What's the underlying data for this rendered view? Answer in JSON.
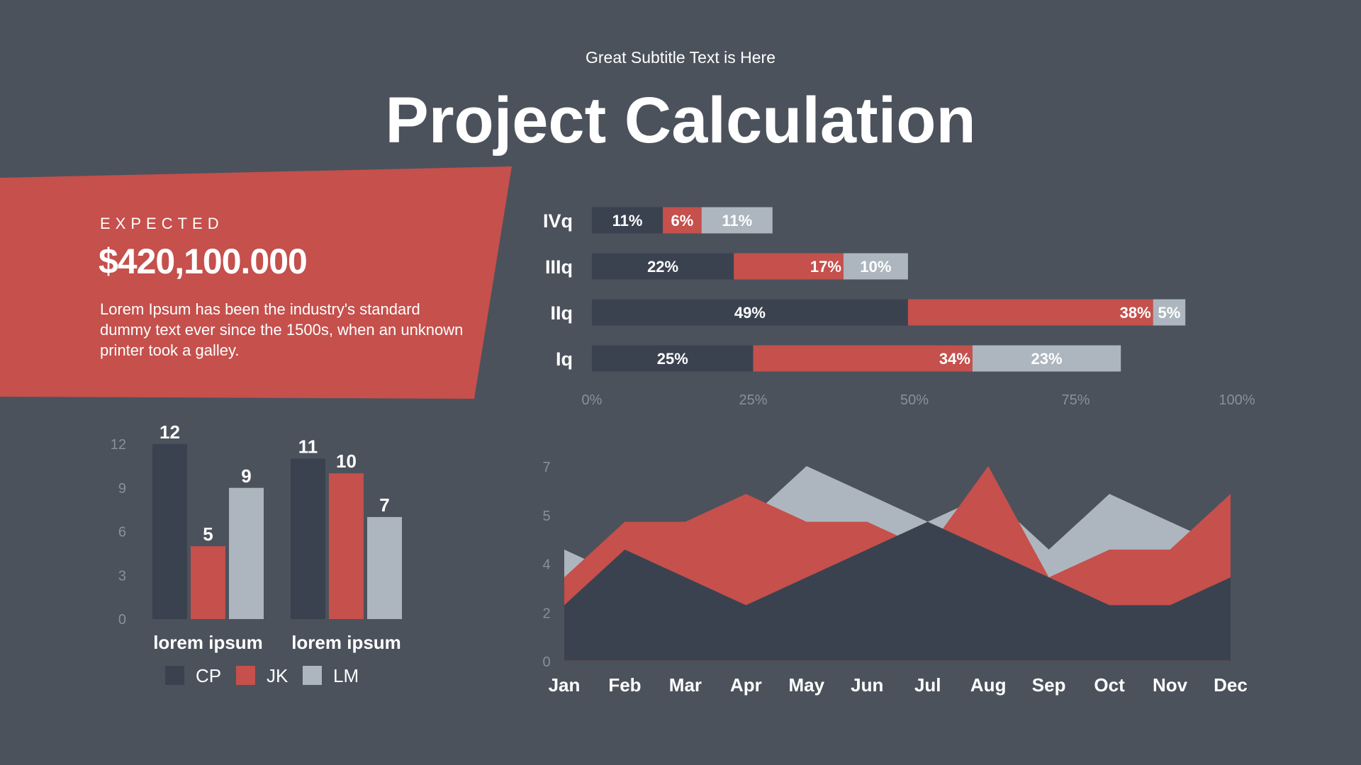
{
  "header": {
    "subtitle": "Great Subtitle Text is Here",
    "title": "Project Calculation"
  },
  "panel": {
    "label": "EXPECTED",
    "amount": "$420,100.000",
    "body": "Lorem Ipsum has been the industry's standard dummy text ever since the 1500s, when an unknown printer took a galley."
  },
  "colors": {
    "background": "#4b525c",
    "dark": "#3a4250",
    "red": "#c5504c",
    "gray": "#adb6be",
    "axis_text": "#8a9099"
  },
  "chart_data": [
    {
      "type": "bar",
      "orientation": "horizontal",
      "stacked": true,
      "categories": [
        "IVq",
        "IIIq",
        "IIq",
        "Iq"
      ],
      "series": [
        {
          "values": [
            11,
            22,
            49,
            25
          ],
          "labels": [
            "11%",
            "22%",
            "49%",
            "25%"
          ],
          "color": "#3a4250"
        },
        {
          "values": [
            6,
            17,
            38,
            34
          ],
          "labels": [
            "6%",
            "17%",
            "38%",
            "34%"
          ],
          "color": "#c5504c"
        },
        {
          "values": [
            11,
            10,
            5,
            23
          ],
          "labels": [
            "11%",
            "10%",
            "5%",
            "23%"
          ],
          "color": "#adb6be"
        }
      ],
      "xticks": [
        "0%",
        "25%",
        "50%",
        "75%",
        "100%"
      ],
      "xlim": [
        0,
        100
      ]
    },
    {
      "type": "bar",
      "categories": [
        "lorem ipsum",
        "lorem ipsum"
      ],
      "series": [
        {
          "name": "CP",
          "values": [
            12,
            11
          ],
          "color": "#3a4250"
        },
        {
          "name": "JK",
          "values": [
            5,
            10
          ],
          "color": "#c5504c"
        },
        {
          "name": "LM",
          "values": [
            9,
            7
          ],
          "color": "#adb6be"
        }
      ],
      "yticks": [
        "0",
        "3",
        "6",
        "9",
        "12"
      ],
      "ylim": [
        0,
        12
      ],
      "legend": "bottom"
    },
    {
      "type": "area",
      "overlapping": true,
      "x": [
        "Jan",
        "Feb",
        "Mar",
        "Apr",
        "May",
        "Jun",
        "Jul",
        "Aug",
        "Sep",
        "Oct",
        "Nov",
        "Dec"
      ],
      "series": [
        {
          "values": [
            4,
            3,
            4,
            5,
            7,
            6,
            5,
            6,
            4,
            6,
            5,
            4
          ],
          "color": "#adb6be"
        },
        {
          "values": [
            3,
            5,
            5,
            6,
            5,
            5,
            4,
            7,
            3,
            4,
            4,
            6
          ],
          "color": "#c5504c"
        },
        {
          "values": [
            2,
            4,
            3,
            2,
            3,
            4,
            5,
            4,
            3,
            2,
            2,
            3
          ],
          "color": "#3a4250"
        }
      ],
      "yticks": [
        "0",
        "2",
        "4",
        "5",
        "7"
      ],
      "ylim": [
        0,
        7
      ]
    }
  ]
}
